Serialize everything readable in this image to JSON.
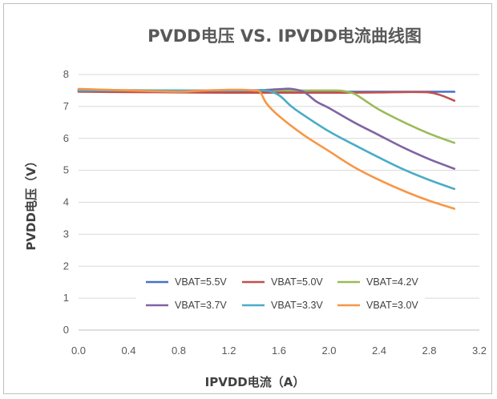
{
  "chart_data": {
    "type": "line",
    "title": "PVDD电压 VS. IPVDD电流曲线图",
    "xlabel": "IPVDD电流（A）",
    "ylabel": "PVDD电压（V）",
    "xlim": [
      0,
      3.2
    ],
    "ylim": [
      0,
      8
    ],
    "xticks": [
      "0.0",
      "0.4",
      "0.8",
      "1.2",
      "1.6",
      "2.0",
      "2.4",
      "2.8",
      "3.2"
    ],
    "yticks": [
      "0",
      "1",
      "2",
      "3",
      "4",
      "5",
      "6",
      "7",
      "8"
    ],
    "grid": "horizontal",
    "legend_position": "bottom-center-inside",
    "series": [
      {
        "name": "VBAT=5.5V",
        "color": "#4472c4",
        "x": [
          0,
          0.4,
          0.8,
          1.2,
          1.6,
          2.0,
          2.4,
          2.8,
          3.0
        ],
        "y": [
          7.48,
          7.47,
          7.46,
          7.46,
          7.46,
          7.46,
          7.46,
          7.46,
          7.46
        ]
      },
      {
        "name": "VBAT=5.0V",
        "color": "#c0504d",
        "x": [
          0,
          0.4,
          0.8,
          1.2,
          1.6,
          2.0,
          2.4,
          2.6,
          2.8,
          2.9,
          3.0
        ],
        "y": [
          7.46,
          7.45,
          7.44,
          7.43,
          7.43,
          7.43,
          7.44,
          7.45,
          7.44,
          7.34,
          7.18
        ]
      },
      {
        "name": "VBAT=4.2V",
        "color": "#9bbb59",
        "x": [
          0,
          0.4,
          0.8,
          1.2,
          1.6,
          2.0,
          2.1,
          2.2,
          2.3,
          2.4,
          2.6,
          2.8,
          3.0
        ],
        "y": [
          7.52,
          7.51,
          7.5,
          7.5,
          7.5,
          7.5,
          7.49,
          7.4,
          7.15,
          6.9,
          6.5,
          6.15,
          5.86
        ]
      },
      {
        "name": "VBAT=3.7V",
        "color": "#8064a2",
        "x": [
          0,
          0.4,
          0.8,
          1.2,
          1.4,
          1.6,
          1.7,
          1.8,
          1.9,
          2.0,
          2.2,
          2.4,
          2.6,
          2.8,
          3.0
        ],
        "y": [
          7.5,
          7.5,
          7.49,
          7.49,
          7.5,
          7.54,
          7.55,
          7.45,
          7.15,
          6.95,
          6.5,
          6.1,
          5.7,
          5.35,
          5.05
        ]
      },
      {
        "name": "VBAT=3.3V",
        "color": "#4bacc6",
        "x": [
          0,
          0.4,
          0.8,
          1.2,
          1.4,
          1.5,
          1.6,
          1.7,
          1.8,
          2.0,
          2.2,
          2.4,
          2.6,
          2.8,
          3.0
        ],
        "y": [
          7.5,
          7.5,
          7.5,
          7.5,
          7.51,
          7.5,
          7.35,
          7.0,
          6.72,
          6.22,
          5.8,
          5.4,
          5.02,
          4.7,
          4.42
        ]
      },
      {
        "name": "VBAT=3.0V",
        "color": "#f79646",
        "x": [
          0,
          0.4,
          0.8,
          1.0,
          1.2,
          1.3,
          1.4,
          1.45,
          1.5,
          1.6,
          1.8,
          2.0,
          2.2,
          2.4,
          2.6,
          2.8,
          3.0
        ],
        "y": [
          7.55,
          7.5,
          7.46,
          7.5,
          7.52,
          7.52,
          7.5,
          7.45,
          7.1,
          6.7,
          6.1,
          5.6,
          5.1,
          4.7,
          4.35,
          4.05,
          3.8
        ]
      }
    ]
  }
}
